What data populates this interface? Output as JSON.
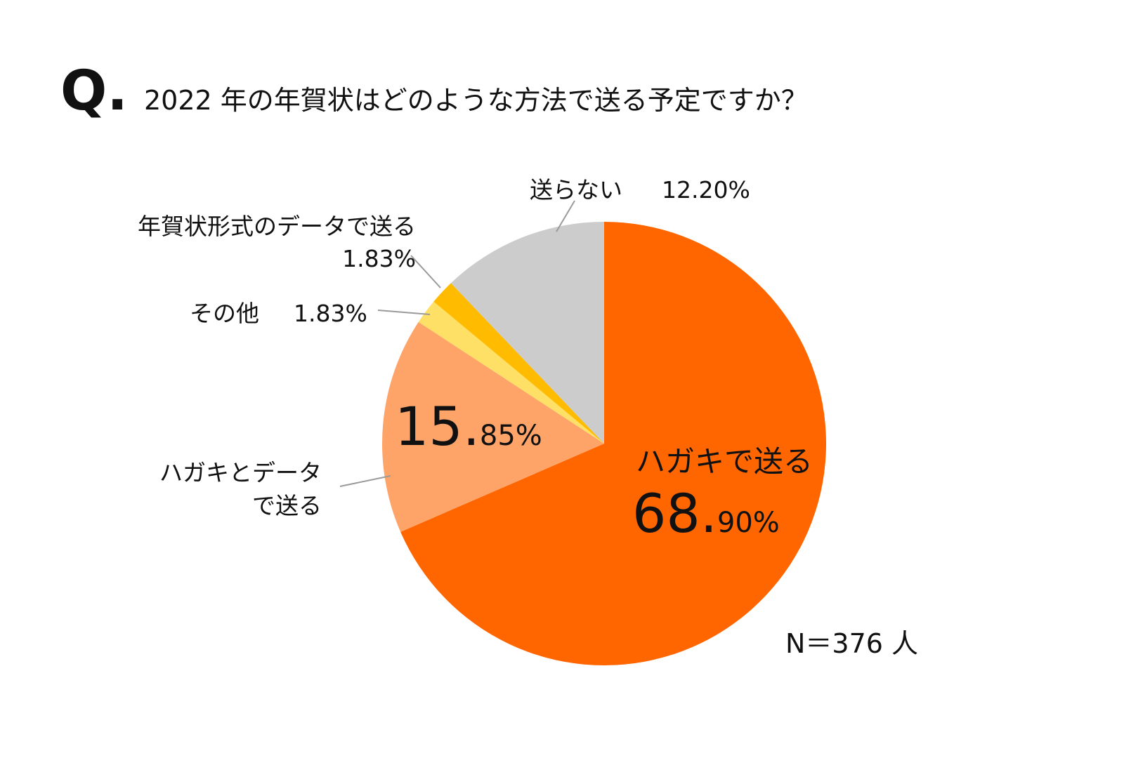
{
  "question": {
    "mark": "Q.",
    "text": "2022 年の年賀状はどのような方法で送る予定ですか？"
  },
  "sample_size": "N＝376 人",
  "chart_data": {
    "type": "pie",
    "title": "2022 年の年賀状はどのような方法で送る予定ですか？",
    "start": "12 o'clock",
    "direction": "clockwise",
    "slices": [
      {
        "name": "ハガキで送る",
        "label_lines": [
          "ハガキで送る"
        ],
        "value": 68.9,
        "color": "#FF6600",
        "value_big": "68.",
        "value_small": "90%"
      },
      {
        "name": "ハガキとデータで送る",
        "label_lines": [
          "ハガキとデータ",
          "で送る"
        ],
        "value": 15.85,
        "color": "#FFA468",
        "value_big": "15.",
        "value_small": "85%"
      },
      {
        "name": "その他",
        "label_lines": [
          "その他"
        ],
        "value": 1.83,
        "color": "#FFE066",
        "value_text": "1.83%"
      },
      {
        "name": "年賀状形式のデータで送る",
        "label_lines": [
          "年賀状形式のデータで送る"
        ],
        "value": 1.83,
        "color": "#FFBB00",
        "value_text": "1.83%"
      },
      {
        "name": "送らない",
        "label_lines": [
          "送らない"
        ],
        "value": 12.2,
        "color": "#CCCCCC",
        "value_text": "12.20%"
      }
    ]
  }
}
